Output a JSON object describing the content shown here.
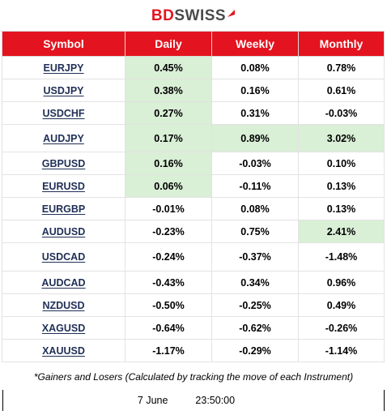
{
  "brand": {
    "part1": "BD",
    "part2": "SWISS"
  },
  "table": {
    "headers": [
      "Symbol",
      "Daily",
      "Weekly",
      "Monthly"
    ],
    "rows": [
      {
        "symbol": "EURJPY",
        "daily": "0.45%",
        "weekly": "0.08%",
        "monthly": "0.78%"
      },
      {
        "symbol": "USDJPY",
        "daily": "0.38%",
        "weekly": "0.16%",
        "monthly": "0.61%"
      },
      {
        "symbol": "USDCHF",
        "daily": "0.27%",
        "weekly": "0.31%",
        "monthly": "-0.03%"
      },
      {
        "symbol": "AUDJPY",
        "daily": "0.17%",
        "weekly": "0.89%",
        "monthly": "3.02%"
      },
      {
        "symbol": "GBPUSD",
        "daily": "0.16%",
        "weekly": "-0.03%",
        "monthly": "0.10%"
      },
      {
        "symbol": "EURUSD",
        "daily": "0.06%",
        "weekly": "-0.11%",
        "monthly": "0.13%"
      },
      {
        "symbol": "EURGBP",
        "daily": "-0.01%",
        "weekly": "0.08%",
        "monthly": "0.13%"
      },
      {
        "symbol": "AUDUSD",
        "daily": "-0.23%",
        "weekly": "0.75%",
        "monthly": "2.41%"
      },
      {
        "symbol": "USDCAD",
        "daily": "-0.24%",
        "weekly": "-0.37%",
        "monthly": "-1.48%"
      },
      {
        "symbol": "AUDCAD",
        "daily": "-0.43%",
        "weekly": "0.34%",
        "monthly": "0.96%"
      },
      {
        "symbol": "NZDUSD",
        "daily": "-0.50%",
        "weekly": "-0.25%",
        "monthly": "0.49%"
      },
      {
        "symbol": "XAGUSD",
        "daily": "-0.64%",
        "weekly": "-0.62%",
        "monthly": "-0.26%"
      },
      {
        "symbol": "XAUUSD",
        "daily": "-1.17%",
        "weekly": "-0.29%",
        "monthly": "-1.14%"
      }
    ]
  },
  "footnote": "*Gainers and Losers (Calculated by tracking the move of each Instrument)",
  "footer": {
    "date": "7 June",
    "time": "23:50:00"
  },
  "colors": {
    "header_bg": "#e3141f",
    "highlight": "#d9efd6",
    "symbol_text": "#1f2f56"
  }
}
